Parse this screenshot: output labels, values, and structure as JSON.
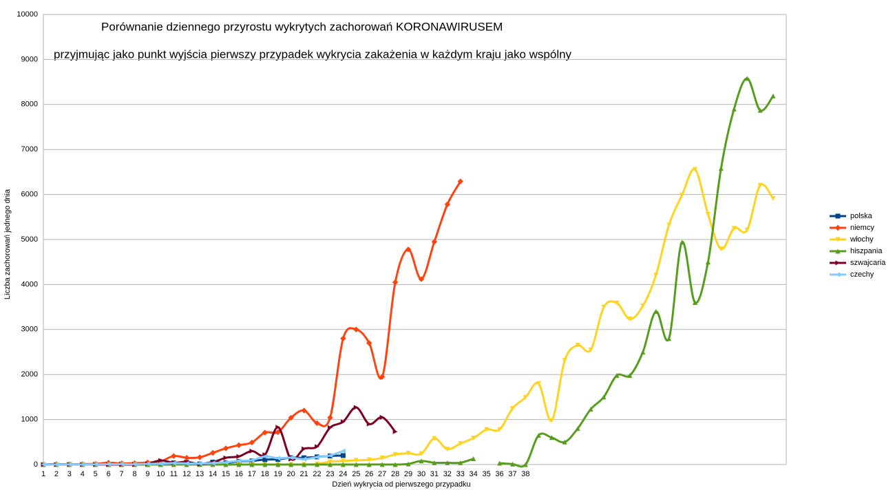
{
  "chart_data": {
    "type": "line",
    "title": "Porównanie dziennego przyrostu wykrytych zachorowań KORONAWIRUSEM",
    "subtitle": "przyjmując jako punkt wyjścia pierwszy przypadek wykrycia zakażenia w każdym kraju jako wspólny",
    "x_label": "Dzień wykrycia od pierwszego przypadku",
    "y_label": "Liczba zachorowań jednego dnia",
    "categories": [
      "1",
      "2",
      "3",
      "4",
      "5",
      "6",
      "7",
      "8",
      "9",
      "10",
      "11",
      "12",
      "13",
      "14",
      "15",
      "16",
      "17",
      "18",
      "19",
      "20",
      "21",
      "22",
      "23",
      "24",
      "25",
      "26",
      "27",
      "28",
      "29",
      "30",
      "31",
      "32",
      "33",
      "34",
      "35",
      "36",
      "37",
      "38",
      null,
      null,
      null,
      null,
      null,
      null,
      null,
      null,
      null,
      null,
      null,
      null,
      null,
      null,
      null,
      null,
      null,
      null,
      null,
      null
    ],
    "ylim": [
      0,
      10000
    ],
    "yticks": [
      0,
      1000,
      2000,
      3000,
      4000,
      5000,
      6000,
      7000,
      8000,
      9000,
      10000
    ],
    "grid": true,
    "smooth": true,
    "legend": "right",
    "series": [
      {
        "name": "polska",
        "color": "#004586",
        "marker": "square",
        "values": [
          1,
          0,
          4,
          1,
          5,
          6,
          11,
          9,
          7,
          17,
          36,
          47,
          13,
          54,
          39,
          71,
          80,
          110,
          115,
          152,
          150,
          170,
          190,
          200,
          null,
          null,
          null,
          null,
          null,
          null,
          null,
          null,
          null,
          null,
          null,
          null,
          null,
          null,
          null,
          null,
          null,
          null,
          null,
          null,
          null,
          null,
          null,
          null,
          null,
          null,
          null,
          null,
          null,
          null,
          null,
          null,
          null,
          null
        ]
      },
      {
        "name": "niemcy",
        "color": "#ff420e",
        "marker": "diamond",
        "values": [
          5,
          10,
          5,
          10,
          15,
          40,
          25,
          30,
          45,
          70,
          190,
          150,
          160,
          260,
          360,
          430,
          490,
          710,
          720,
          1040,
          1200,
          920,
          1040,
          2800,
          3000,
          2700,
          1950,
          4050,
          4780,
          4120,
          4950,
          5780,
          6290,
          null,
          null,
          null,
          null,
          null,
          null,
          null,
          null,
          null,
          null,
          null,
          null,
          null,
          null,
          null,
          null,
          null,
          null,
          null,
          null,
          null,
          null,
          null,
          null,
          null
        ]
      },
      {
        "name": "włochy",
        "color": "#ffd320",
        "marker": "triangle-down",
        "values": [
          2,
          0,
          0,
          0,
          0,
          0,
          0,
          0,
          0,
          0,
          0,
          0,
          0,
          0,
          0,
          0,
          0,
          0,
          0,
          0,
          0,
          14,
          62,
          78,
          93,
          105,
          146,
          223,
          250,
          240,
          578,
          342,
          466,
          587,
          778,
          778,
          1247,
          1492,
          1797,
          977,
          2313,
          2651,
          2547,
          3497,
          3590,
          3233,
          3526,
          4207,
          5322,
          5986,
          6557,
          5560,
          4789,
          5249,
          5210,
          6203,
          5909,
          null
        ]
      },
      {
        "name": "hiszpania",
        "color": "#579d1c",
        "marker": "triangle-up",
        "values": [
          1,
          0,
          0,
          0,
          0,
          0,
          0,
          0,
          0,
          0,
          0,
          0,
          1,
          0,
          0,
          0,
          0,
          0,
          0,
          0,
          0,
          0,
          0,
          0,
          0,
          0,
          2,
          0,
          13,
          80,
          40,
          40,
          40,
          130,
          null,
          30,
          10,
          0,
          650,
          600,
          500,
          800,
          1230,
          1500,
          1980,
          1980,
          2500,
          3400,
          2800,
          4940,
          3600,
          4500,
          6580,
          7900,
          8580,
          7870,
          8190,
          null
        ]
      },
      {
        "name": "szwajcaria",
        "color": "#7e0021",
        "marker": "triangle-right",
        "values": [
          0,
          0,
          0,
          0,
          0,
          0,
          0,
          0,
          20,
          90,
          40,
          60,
          10,
          50,
          150,
          180,
          300,
          220,
          830,
          120,
          350,
          400,
          820,
          950,
          1270,
          900,
          1050,
          730,
          null,
          null,
          null,
          null,
          null,
          null,
          null,
          null,
          null,
          null,
          null,
          null,
          null,
          null,
          null,
          null,
          null,
          null,
          null,
          null,
          null,
          null,
          null,
          null,
          null,
          null,
          null,
          null,
          null,
          null
        ]
      },
      {
        "name": "czechy",
        "color": "#83caff",
        "marker": "triangle-left",
        "values": [
          3,
          0,
          2,
          0,
          3,
          7,
          10,
          6,
          15,
          19,
          32,
          24,
          22,
          33,
          48,
          84,
          94,
          180,
          140,
          152,
          120,
          165,
          200,
          302,
          null,
          null,
          null,
          null,
          null,
          null,
          null,
          null,
          null,
          null,
          null,
          null,
          null,
          null,
          null,
          null,
          null,
          null,
          null,
          null,
          null,
          null,
          null,
          null,
          null,
          null,
          null,
          null,
          null,
          null,
          null,
          null,
          null,
          null
        ]
      }
    ]
  }
}
